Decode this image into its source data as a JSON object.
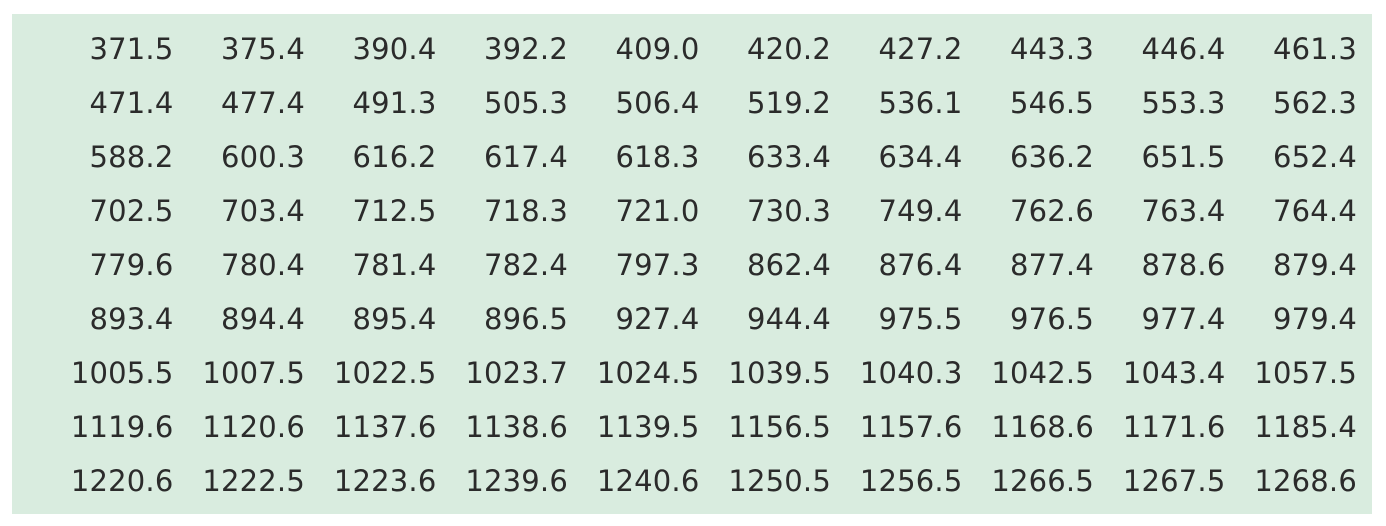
{
  "table": {
    "rows": [
      [
        "371.5",
        "375.4",
        "390.4",
        "392.2",
        "409.0",
        "420.2",
        "427.2",
        "443.3",
        "446.4",
        "461.3"
      ],
      [
        "471.4",
        "477.4",
        "491.3",
        "505.3",
        "506.4",
        "519.2",
        "536.1",
        "546.5",
        "553.3",
        "562.3"
      ],
      [
        "588.2",
        "600.3",
        "616.2",
        "617.4",
        "618.3",
        "633.4",
        "634.4",
        "636.2",
        "651.5",
        "652.4"
      ],
      [
        "702.5",
        "703.4",
        "712.5",
        "718.3",
        "721.0",
        "730.3",
        "749.4",
        "762.6",
        "763.4",
        "764.4"
      ],
      [
        "779.6",
        "780.4",
        "781.4",
        "782.4",
        "797.3",
        "862.4",
        "876.4",
        "877.4",
        "878.6",
        "879.4"
      ],
      [
        "893.4",
        "894.4",
        "895.4",
        "896.5",
        "927.4",
        "944.4",
        "975.5",
        "976.5",
        "977.4",
        "979.4"
      ],
      [
        "1005.5",
        "1007.5",
        "1022.5",
        "1023.7",
        "1024.5",
        "1039.5",
        "1040.3",
        "1042.5",
        "1043.4",
        "1057.5"
      ],
      [
        "1119.6",
        "1120.6",
        "1137.6",
        "1138.6",
        "1139.5",
        "1156.5",
        "1157.6",
        "1168.6",
        "1171.6",
        "1185.4"
      ],
      [
        "1220.6",
        "1222.5",
        "1223.6",
        "1239.6",
        "1240.6",
        "1250.5",
        "1256.5",
        "1266.5",
        "1267.5",
        "1268.6"
      ]
    ]
  },
  "colors": {
    "panel_background": "#d9ecdf",
    "text": "#2b2b2b"
  }
}
